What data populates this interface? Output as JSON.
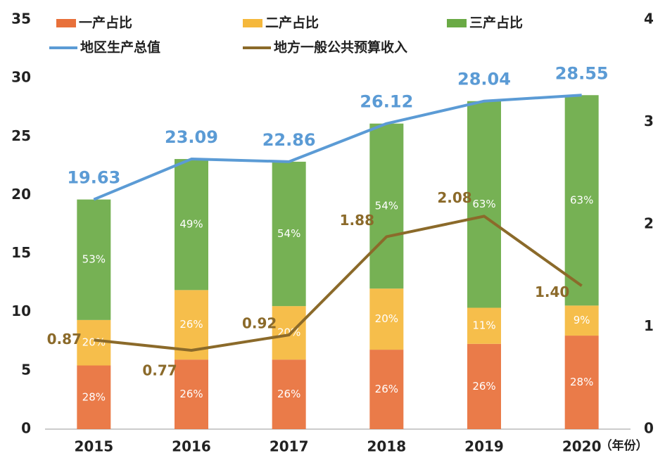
{
  "chart_data": {
    "type": "bar",
    "categories": [
      "2015",
      "2016",
      "2017",
      "2018",
      "2019",
      "2020"
    ],
    "x_label": "（年份）",
    "series": [
      {
        "name": "一产占比",
        "type": "bar",
        "stack": "share",
        "color": "#e8703a",
        "values": [
          28,
          26,
          26,
          26,
          26,
          28
        ],
        "value_labels": [
          "28%",
          "26%",
          "26%",
          "26%",
          "26%",
          "28%"
        ]
      },
      {
        "name": "二产占比",
        "type": "bar",
        "stack": "share",
        "color": "#f5b83c",
        "values": [
          20,
          26,
          20,
          20,
          11,
          9
        ],
        "value_labels": [
          "20%",
          "26%",
          "20%",
          "20%",
          "11%",
          "9%"
        ]
      },
      {
        "name": "三产占比",
        "type": "bar",
        "stack": "share",
        "color": "#6aaa45",
        "values": [
          53,
          49,
          54,
          54,
          63,
          63
        ],
        "value_labels": [
          "53%",
          "49%",
          "54%",
          "54%",
          "63%",
          "63%"
        ]
      },
      {
        "name": "地区生产总值",
        "type": "line",
        "color": "#5b9bd5",
        "values": [
          19.63,
          23.09,
          22.86,
          26.12,
          28.04,
          28.55
        ]
      },
      {
        "name": "地方一般公共预算收入",
        "type": "line",
        "axis": "y2",
        "color": "#8b6a2a",
        "values": [
          0.87,
          0.77,
          0.92,
          1.88,
          2.08,
          1.4
        ],
        "value_labels": [
          "0.87",
          "0.77",
          "0.92",
          "1.88",
          "2.08",
          "1.40"
        ]
      }
    ],
    "ylim": [
      0,
      35
    ],
    "yticks": [
      0,
      5,
      10,
      15,
      20,
      25,
      30,
      35
    ],
    "y2lim": [
      0,
      4
    ],
    "y2ticks": [
      0,
      1,
      2,
      3,
      4
    ]
  }
}
